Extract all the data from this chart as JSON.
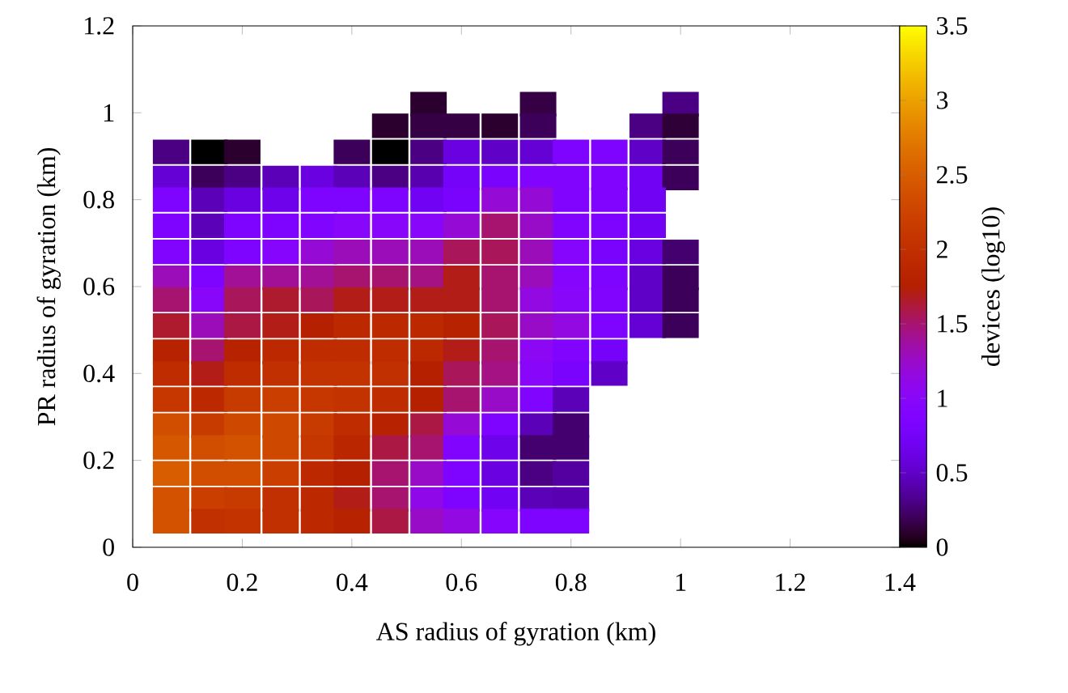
{
  "chart_data": {
    "type": "heatmap",
    "xlabel": "AS radius of gyration (km)",
    "ylabel": "PR radius of gyration (km)",
    "clabel": "devices (log10)",
    "x": [
      0.07,
      0.14,
      0.2,
      0.27,
      0.34,
      0.4,
      0.47,
      0.54,
      0.6,
      0.67,
      0.74,
      0.8,
      0.87,
      0.94,
      1.0
    ],
    "y": [
      1.02,
      0.97,
      0.91,
      0.85,
      0.8,
      0.74,
      0.68,
      0.62,
      0.57,
      0.51,
      0.45,
      0.4,
      0.34,
      0.28,
      0.23,
      0.17,
      0.11,
      0.06
    ],
    "cells": [
      [
        null,
        null,
        null,
        null,
        null,
        null,
        null,
        0.1,
        null,
        null,
        0.15,
        null,
        null,
        null,
        0.3
      ],
      [
        null,
        null,
        null,
        null,
        null,
        null,
        0.1,
        0.15,
        0.15,
        0.1,
        0.2,
        null,
        null,
        0.3,
        0.12
      ],
      [
        0.3,
        0,
        0.1,
        null,
        null,
        0.2,
        0,
        0.3,
        0.6,
        0.5,
        0.55,
        0.85,
        0.85,
        0.5,
        0.2
      ],
      [
        0.55,
        0.2,
        0.3,
        0.45,
        0.6,
        0.45,
        0.3,
        0.42,
        0.75,
        0.8,
        0.9,
        0.9,
        0.9,
        0.7,
        0.2
      ],
      [
        0.85,
        0.45,
        0.6,
        0.65,
        0.85,
        0.85,
        0.85,
        0.7,
        0.8,
        1.2,
        1.2,
        0.9,
        0.9,
        0.7,
        null
      ],
      [
        0.85,
        0.45,
        0.85,
        0.85,
        0.9,
        1.0,
        1.0,
        1.0,
        1.2,
        1.5,
        1.25,
        0.9,
        0.85,
        0.7,
        null
      ],
      [
        0.9,
        0.6,
        0.85,
        0.95,
        1.2,
        1.3,
        1.3,
        1.3,
        1.55,
        1.55,
        1.3,
        0.95,
        0.8,
        0.6,
        0.25
      ],
      [
        1.3,
        0.85,
        1.4,
        1.4,
        1.4,
        1.5,
        1.5,
        1.45,
        1.7,
        1.5,
        1.3,
        0.95,
        0.85,
        0.5,
        0.2
      ],
      [
        1.5,
        1.0,
        1.55,
        1.65,
        1.55,
        1.7,
        1.7,
        1.7,
        1.7,
        1.5,
        1.15,
        1.0,
        0.9,
        0.5,
        0.2
      ],
      [
        1.65,
        1.3,
        1.6,
        1.7,
        1.75,
        1.9,
        1.9,
        1.9,
        1.8,
        1.55,
        1.25,
        1.15,
        0.85,
        0.55,
        0.2
      ],
      [
        1.8,
        1.5,
        1.8,
        1.9,
        1.95,
        1.95,
        1.95,
        1.9,
        1.7,
        1.5,
        1.05,
        0.9,
        0.75,
        null,
        null
      ],
      [
        1.95,
        1.7,
        1.95,
        2.0,
        2.05,
        2.05,
        2.0,
        1.75,
        1.55,
        1.45,
        1.0,
        0.8,
        0.5,
        null,
        null
      ],
      [
        2.1,
        1.9,
        2.15,
        2.2,
        2.1,
        2.05,
        1.95,
        1.75,
        1.5,
        1.25,
        0.9,
        0.45,
        null,
        null,
        null
      ],
      [
        2.35,
        2.15,
        2.3,
        2.3,
        2.15,
        1.95,
        1.8,
        1.6,
        1.2,
        0.85,
        0.45,
        0.25,
        null,
        null,
        null
      ],
      [
        2.45,
        2.35,
        2.4,
        2.3,
        2.1,
        1.85,
        1.6,
        1.5,
        0.9,
        0.65,
        0.25,
        0.25,
        null,
        null,
        null
      ],
      [
        2.5,
        2.35,
        2.35,
        2.2,
        1.9,
        1.75,
        1.5,
        1.25,
        0.85,
        0.6,
        0.3,
        0.38,
        null,
        null,
        null
      ],
      [
        2.4,
        2.2,
        2.15,
        2.0,
        1.9,
        1.7,
        1.5,
        1.1,
        0.85,
        0.7,
        0.45,
        0.43,
        null,
        null,
        null
      ],
      [
        2.4,
        2.0,
        2.05,
        2.0,
        1.9,
        1.8,
        1.6,
        1.25,
        1.15,
        0.95,
        0.85,
        0.85,
        null,
        null,
        null
      ]
    ],
    "clim": [
      0,
      3.5
    ],
    "cticks": [
      0,
      0.5,
      1,
      1.5,
      2,
      2.5,
      3,
      3.5
    ],
    "xlim": [
      0,
      1.4
    ],
    "ylim": [
      0,
      1.2
    ],
    "xticks": [
      0,
      0.2,
      0.4,
      0.6,
      0.8,
      1,
      1.2,
      1.4
    ],
    "yticks": [
      0,
      0.2,
      0.4,
      0.6,
      0.8,
      1,
      1.2
    ]
  }
}
